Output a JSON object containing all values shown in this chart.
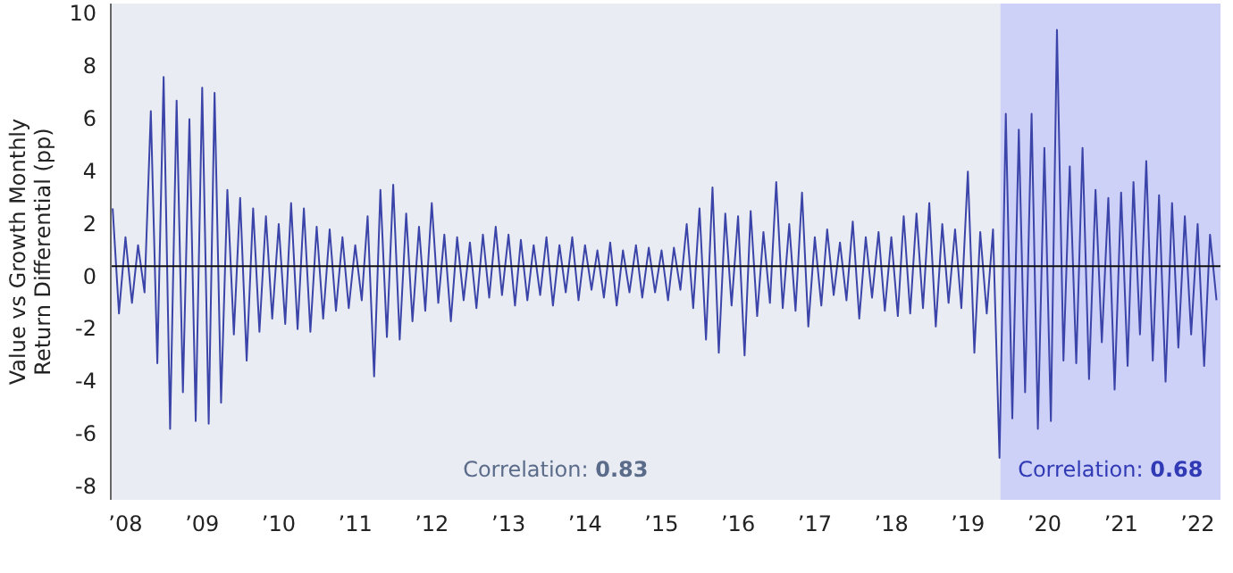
{
  "chart_data": {
    "type": "line",
    "ylabel": "Value vs Growth Monthly\nReturn Differential (pp)",
    "x": [
      "2007-11",
      "2007-12",
      "2008-01",
      "2008-02",
      "2008-03",
      "2008-04",
      "2008-05",
      "2008-06",
      "2008-07",
      "2008-08",
      "2008-09",
      "2008-10",
      "2008-11",
      "2008-12",
      "2009-01",
      "2009-02",
      "2009-03",
      "2009-04",
      "2009-05",
      "2009-06",
      "2009-07",
      "2009-08",
      "2009-09",
      "2009-10",
      "2009-11",
      "2009-12",
      "2010-01",
      "2010-02",
      "2010-03",
      "2010-04",
      "2010-05",
      "2010-06",
      "2010-07",
      "2010-08",
      "2010-09",
      "2010-10",
      "2010-11",
      "2010-12",
      "2011-01",
      "2011-02",
      "2011-03",
      "2011-04",
      "2011-05",
      "2011-06",
      "2011-07",
      "2011-08",
      "2011-09",
      "2011-10",
      "2011-11",
      "2011-12",
      "2012-01",
      "2012-02",
      "2012-03",
      "2012-04",
      "2012-05",
      "2012-06",
      "2012-07",
      "2012-08",
      "2012-09",
      "2012-10",
      "2012-11",
      "2012-12",
      "2013-01",
      "2013-02",
      "2013-03",
      "2013-04",
      "2013-05",
      "2013-06",
      "2013-07",
      "2013-08",
      "2013-09",
      "2013-10",
      "2013-11",
      "2013-12",
      "2014-01",
      "2014-02",
      "2014-03",
      "2014-04",
      "2014-05",
      "2014-06",
      "2014-07",
      "2014-08",
      "2014-09",
      "2014-10",
      "2014-11",
      "2014-12",
      "2015-01",
      "2015-02",
      "2015-03",
      "2015-04",
      "2015-05",
      "2015-06",
      "2015-07",
      "2015-08",
      "2015-09",
      "2015-10",
      "2015-11",
      "2015-12",
      "2016-01",
      "2016-02",
      "2016-03",
      "2016-04",
      "2016-05",
      "2016-06",
      "2016-07",
      "2016-08",
      "2016-09",
      "2016-10",
      "2016-11",
      "2016-12",
      "2017-01",
      "2017-02",
      "2017-03",
      "2017-04",
      "2017-05",
      "2017-06",
      "2017-07",
      "2017-08",
      "2017-09",
      "2017-10",
      "2017-11",
      "2017-12",
      "2018-01",
      "2018-02",
      "2018-03",
      "2018-04",
      "2018-05",
      "2018-06",
      "2018-07",
      "2018-08",
      "2018-09",
      "2018-10",
      "2018-11",
      "2018-12",
      "2019-01",
      "2019-02",
      "2019-03",
      "2019-04",
      "2019-05",
      "2019-06",
      "2019-07",
      "2019-08",
      "2019-09",
      "2019-10",
      "2019-11",
      "2019-12",
      "2020-01",
      "2020-02",
      "2020-03",
      "2020-04",
      "2020-05",
      "2020-06",
      "2020-07",
      "2020-08",
      "2020-09",
      "2020-10",
      "2020-11",
      "2020-12",
      "2021-01",
      "2021-02",
      "2021-03",
      "2021-04",
      "2021-05",
      "2021-06",
      "2021-07",
      "2021-08",
      "2021-09",
      "2021-10",
      "2021-11",
      "2021-12",
      "2022-01",
      "2022-02",
      "2022-03",
      "2022-04"
    ],
    "series": [
      {
        "color": "#3b44a8",
        "values": [
          2.6,
          -1.4,
          1.5,
          -1.0,
          1.2,
          -0.6,
          6.3,
          -3.3,
          7.6,
          -5.8,
          6.7,
          -4.4,
          6.0,
          -5.5,
          7.2,
          -5.6,
          7.0,
          -4.8,
          3.3,
          -2.2,
          3.0,
          -3.2,
          2.6,
          -2.1,
          2.3,
          -1.6,
          2.0,
          -1.8,
          2.8,
          -2.0,
          2.6,
          -2.1,
          1.9,
          -1.6,
          1.8,
          -1.3,
          1.5,
          -1.2,
          1.2,
          -0.9,
          2.3,
          -3.8,
          3.3,
          -2.3,
          3.5,
          -2.4,
          2.4,
          -1.7,
          1.9,
          -1.3,
          2.8,
          -1.0,
          1.6,
          -1.7,
          1.5,
          -0.9,
          1.3,
          -1.2,
          1.6,
          -0.8,
          1.9,
          -0.7,
          1.6,
          -1.1,
          1.4,
          -0.9,
          1.2,
          -0.7,
          1.5,
          -1.1,
          1.2,
          -0.6,
          1.5,
          -0.9,
          1.2,
          -0.5,
          1.0,
          -0.8,
          1.3,
          -1.1,
          1.0,
          -0.6,
          1.2,
          -0.8,
          1.1,
          -0.6,
          1.0,
          -0.9,
          1.1,
          -0.5,
          2.0,
          -1.2,
          2.6,
          -2.4,
          3.4,
          -2.9,
          2.4,
          -1.1,
          2.3,
          -3.0,
          2.5,
          -1.5,
          1.7,
          -1.0,
          3.6,
          -1.2,
          2.0,
          -1.3,
          3.2,
          -1.9,
          1.5,
          -1.1,
          1.8,
          -0.7,
          1.3,
          -0.9,
          2.1,
          -1.6,
          1.5,
          -0.8,
          1.7,
          -1.3,
          1.5,
          -1.5,
          2.3,
          -1.4,
          2.4,
          -1.2,
          2.8,
          -1.9,
          2.0,
          -1.0,
          1.8,
          -1.2,
          4.0,
          -2.9,
          1.7,
          -1.4,
          1.8,
          -6.9,
          6.2,
          -5.4,
          5.6,
          -4.4,
          6.2,
          -5.8,
          4.9,
          -5.5,
          9.4,
          -3.2,
          4.2,
          -3.3,
          4.9,
          -3.9,
          3.3,
          -2.5,
          3.0,
          -4.3,
          3.2,
          -3.4,
          3.6,
          -2.2,
          4.4,
          -3.2,
          3.1,
          -4.0,
          2.8,
          -2.7,
          2.3,
          -2.2,
          2.0,
          -3.4,
          1.6,
          -0.9
        ]
      }
    ],
    "xlim": [
      "2007-10-23",
      "2022-04-20"
    ],
    "xticks": [
      {
        "value": "2008",
        "label": "’08"
      },
      {
        "value": "2009",
        "label": "’09"
      },
      {
        "value": "2010",
        "label": "’10"
      },
      {
        "value": "2011",
        "label": "’11"
      },
      {
        "value": "2012",
        "label": "’12"
      },
      {
        "value": "2013",
        "label": "’13"
      },
      {
        "value": "2014",
        "label": "’14"
      },
      {
        "value": "2015",
        "label": "’15"
      },
      {
        "value": "2016",
        "label": "’16"
      },
      {
        "value": "2017",
        "label": "’17"
      },
      {
        "value": "2018",
        "label": "’18"
      },
      {
        "value": "2019",
        "label": "’19"
      },
      {
        "value": "2020",
        "label": "’20"
      },
      {
        "value": "2021",
        "label": "’21"
      },
      {
        "value": "2022",
        "label": "’22"
      }
    ],
    "ylim": [
      -8.5,
      10.4
    ],
    "yticks": [
      -8,
      -6,
      -4,
      -2,
      0,
      2,
      4,
      6,
      8,
      10
    ],
    "bands": [
      {
        "axis": "x",
        "from": "2007-10-23",
        "to": "2019-06-05",
        "label": "Correlation: 0.83",
        "color": "#e9ecf2"
      },
      {
        "axis": "x",
        "from": "2019-06-05",
        "to": "2022-04-20",
        "label": "Correlation: 0.68",
        "color": "#cdd0f7"
      }
    ],
    "ref_lines": [
      {
        "axis": "y",
        "value": 0.4,
        "color": "#111111"
      }
    ],
    "grid": false,
    "marker": "none",
    "line_style": "solid"
  }
}
